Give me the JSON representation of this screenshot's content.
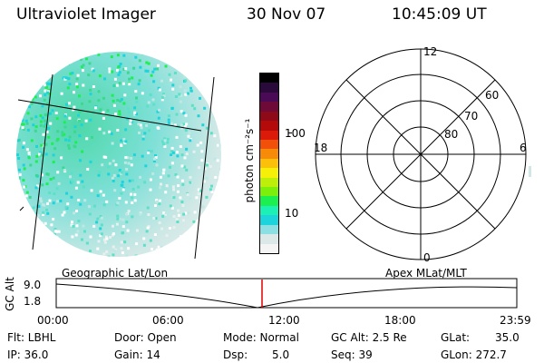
{
  "header": {
    "title": "Ultraviolet Imager",
    "date": "30 Nov 07",
    "time": "10:45:09 UT"
  },
  "colorbar": {
    "unit_label": "photon cm⁻²s⁻¹",
    "ticks": [
      "100",
      "10"
    ],
    "scale": "log",
    "colors": [
      "#000000",
      "#2a0a3a",
      "#4b0a55",
      "#6e0a38",
      "#8e0a18",
      "#b40a0a",
      "#dc1a0a",
      "#f0500a",
      "#f88a0a",
      "#fcc00a",
      "#f4f00a",
      "#bcf00a",
      "#7cf00a",
      "#1cf050",
      "#1cf0b4",
      "#1cd4dc",
      "#8ce0e4",
      "#dce8e8",
      "#f4f4f4"
    ]
  },
  "polar": {
    "mlt_labels": [
      "12",
      "18",
      "6",
      "0"
    ],
    "lat_labels": [
      "60",
      "70",
      "80"
    ]
  },
  "timeline": {
    "left_label": "Geographic Lat/Lon",
    "right_label": "Apex MLat/MLT",
    "axis_title": "GC Alt",
    "y_ticks": [
      "9.0",
      "1.8"
    ],
    "x_ticks": [
      "00:00",
      "06:00",
      "12:00",
      "18:00",
      "23:59"
    ],
    "current_time_marker": "10:45:09",
    "marker_color": "#dd0000"
  },
  "info": {
    "flt": "Flt: LBHL",
    "ip": "IP: 36.0",
    "door": "Door: Open",
    "gain": "Gain: 14",
    "mode": "Mode: Normal",
    "dsp": "Dsp:",
    "dsp_value": "5.0",
    "gc_alt": "GC Alt: 2.5 Re",
    "seq": "Seq: 39",
    "glat": "GLat:",
    "glat_value": "35.0",
    "glon": "GLon: 272.7"
  }
}
